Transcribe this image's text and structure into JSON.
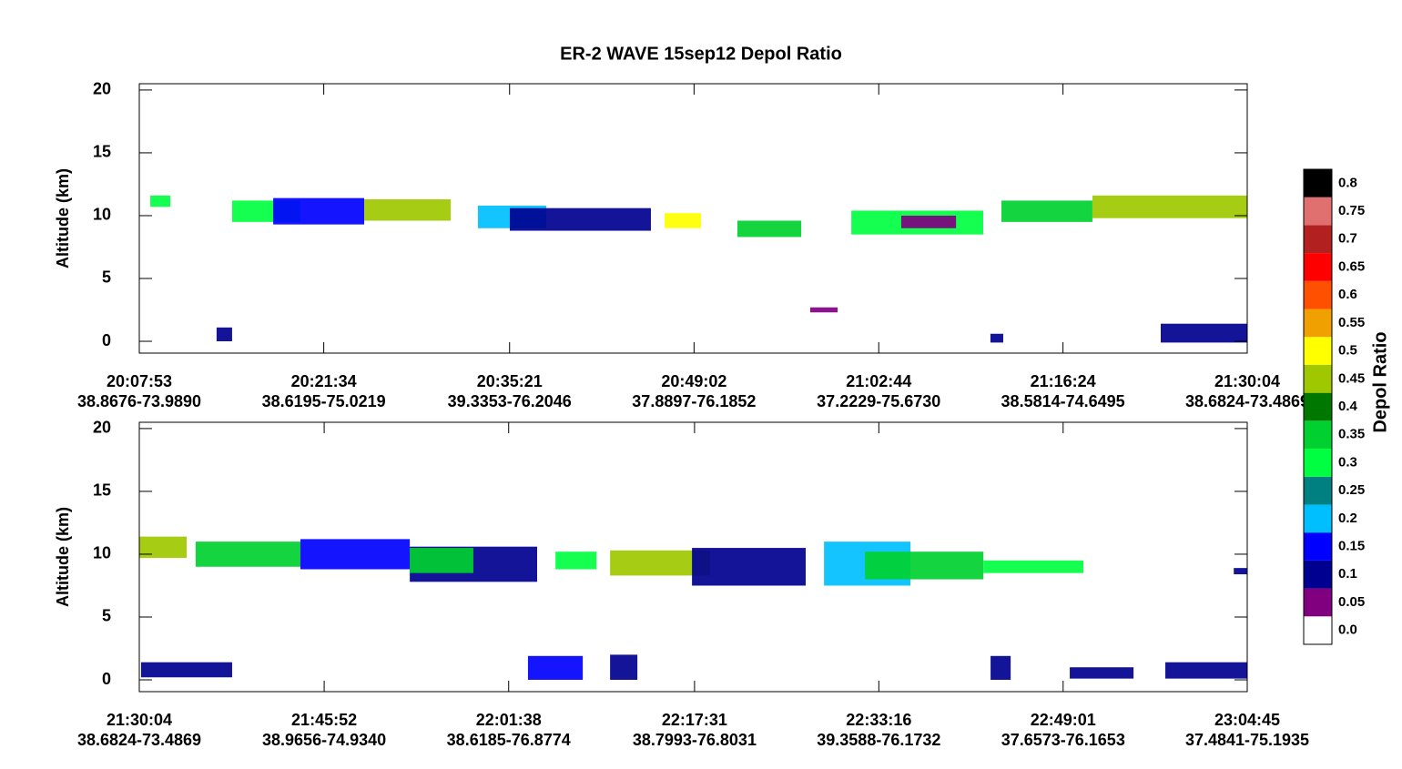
{
  "chart_data": [
    {
      "type": "curtain",
      "title": "ER-2 WAVE 15sep12 Depol Ratio",
      "y_label": "Altitude (km)",
      "ylim": [
        -0.94,
        20.5
      ],
      "yticks": [
        0,
        5,
        10,
        15,
        20
      ],
      "xlim": [
        "20:07:53",
        "21:30:04"
      ],
      "xticks": [
        "20:07:53",
        "20:21:34",
        "20:35:21",
        "20:49:02",
        "21:02:44",
        "21:16:24",
        "21:30:04"
      ],
      "xtick_coords": [
        "38.8676-73.9890",
        "38.6195-75.0219",
        "39.3353-76.2046",
        "37.8897-76.1852",
        "37.2229-75.6730",
        "38.5814-74.6495",
        "38.6824-73.4869"
      ],
      "patches": [
        {
          "start": "20:08:42",
          "end": "20:10:11",
          "bottom": 10.7,
          "top": 11.6,
          "value": 0.3
        },
        {
          "start": "20:14:46",
          "end": "20:19:50",
          "bottom": 9.5,
          "top": 11.2,
          "value": 0.3
        },
        {
          "start": "20:17:49",
          "end": "20:24:34",
          "bottom": 9.3,
          "top": 11.4,
          "value": 0.15
        },
        {
          "start": "20:24:34",
          "end": "20:30:59",
          "bottom": 9.6,
          "top": 11.3,
          "value": 0.45
        },
        {
          "start": "20:33:00",
          "end": "20:38:04",
          "bottom": 9.0,
          "top": 10.8,
          "value": 0.2
        },
        {
          "start": "20:35:22",
          "end": "20:45:50",
          "bottom": 8.8,
          "top": 10.6,
          "value": 0.1
        },
        {
          "start": "20:46:51",
          "end": "20:49:33",
          "bottom": 9.0,
          "top": 10.2,
          "value": 0.5
        },
        {
          "start": "20:52:15",
          "end": "20:56:59",
          "bottom": 8.3,
          "top": 9.6,
          "value": 0.35
        },
        {
          "start": "21:00:42",
          "end": "21:10:29",
          "bottom": 8.5,
          "top": 10.4,
          "value": 0.3
        },
        {
          "start": "21:04:24",
          "end": "21:08:28",
          "bottom": 9.0,
          "top": 10.0,
          "value": 0.05
        },
        {
          "start": "21:11:50",
          "end": "21:18:35",
          "bottom": 9.5,
          "top": 11.2,
          "value": 0.35
        },
        {
          "start": "21:18:35",
          "end": "21:30:04",
          "bottom": 9.8,
          "top": 11.6,
          "value": 0.45
        },
        {
          "start": "21:23:39",
          "end": "21:30:04",
          "bottom": -0.1,
          "top": 1.4,
          "value": 0.1
        },
        {
          "start": "20:13:37",
          "end": "20:14:46",
          "bottom": 0,
          "top": 1.1,
          "value": 0.1
        },
        {
          "start": "21:11:01",
          "end": "21:11:58",
          "bottom": -0.1,
          "top": 0.6,
          "value": 0.1
        },
        {
          "start": "20:57:39",
          "end": "20:59:41",
          "bottom": 2.3,
          "top": 2.7,
          "value": 0.05
        }
      ]
    },
    {
      "type": "curtain",
      "y_label": "Altitude (km)",
      "ylim": [
        -0.94,
        20.5
      ],
      "yticks": [
        0,
        5,
        10,
        15,
        20
      ],
      "xlim": [
        "21:30:04",
        "23:04:45"
      ],
      "xticks": [
        "21:30:04",
        "21:45:52",
        "22:01:38",
        "22:17:31",
        "22:33:16",
        "22:49:01",
        "23:04:45"
      ],
      "xtick_coords": [
        "38.6824-73.4869",
        "38.9656-74.9340",
        "38.6185-76.8774",
        "38.7993-76.8031",
        "39.3588-76.1732",
        "37.6573-76.1653",
        "37.4841-75.1935"
      ],
      "patches": [
        {
          "start": "21:30:04",
          "end": "21:34:07",
          "bottom": 9.7,
          "top": 11.4,
          "value": 0.45
        },
        {
          "start": "21:34:53",
          "end": "21:43:50",
          "bottom": 9.0,
          "top": 11.0,
          "value": 0.35
        },
        {
          "start": "21:43:50",
          "end": "21:53:11",
          "bottom": 8.8,
          "top": 11.2,
          "value": 0.15
        },
        {
          "start": "21:53:11",
          "end": "22:04:04",
          "bottom": 7.8,
          "top": 10.6,
          "value": 0.1
        },
        {
          "start": "21:53:11",
          "end": "21:58:37",
          "bottom": 8.5,
          "top": 10.5,
          "value": 0.35
        },
        {
          "start": "22:05:38",
          "end": "22:09:08",
          "bottom": 8.8,
          "top": 10.2,
          "value": 0.3
        },
        {
          "start": "22:10:18",
          "end": "22:18:51",
          "bottom": 8.3,
          "top": 10.3,
          "value": 0.45
        },
        {
          "start": "22:17:18",
          "end": "22:27:01",
          "bottom": 7.5,
          "top": 10.5,
          "value": 0.1
        },
        {
          "start": "22:28:35",
          "end": "22:35:58",
          "bottom": 7.5,
          "top": 11.0,
          "value": 0.2
        },
        {
          "start": "22:32:05",
          "end": "22:42:12",
          "bottom": 8.0,
          "top": 10.2,
          "value": 0.35
        },
        {
          "start": "22:42:12",
          "end": "22:50:45",
          "bottom": 8.5,
          "top": 9.5,
          "value": 0.3
        },
        {
          "start": "21:30:13",
          "end": "21:38:00",
          "bottom": 0.2,
          "top": 1.4,
          "value": 0.1
        },
        {
          "start": "22:03:17",
          "end": "22:07:58",
          "bottom": 0,
          "top": 1.9,
          "value": 0.15
        },
        {
          "start": "22:10:18",
          "end": "22:12:38",
          "bottom": 0,
          "top": 2.0,
          "value": 0.1
        },
        {
          "start": "22:42:49",
          "end": "22:44:32",
          "bottom": 0,
          "top": 1.9,
          "value": 0.1
        },
        {
          "start": "22:49:35",
          "end": "22:55:02",
          "bottom": 0.1,
          "top": 1.0,
          "value": 0.1
        },
        {
          "start": "22:57:45",
          "end": "23:04:45",
          "bottom": 0.1,
          "top": 1.4,
          "value": 0.1
        },
        {
          "start": "23:03:36",
          "end": "23:04:45",
          "bottom": 8.4,
          "top": 8.9,
          "value": 0.1
        }
      ]
    },
    {
      "type": "colorbar",
      "label": "Depol Ratio",
      "levels": [
        {
          "value": 0,
          "label": "0.0",
          "color": "#ffffff"
        },
        {
          "value": 0.05,
          "color": "#800080"
        },
        {
          "value": 0.1,
          "color": "#000090"
        },
        {
          "value": 0.15,
          "color": "#0000ff"
        },
        {
          "value": 0.2,
          "color": "#00bfff"
        },
        {
          "value": 0.25,
          "color": "#008080"
        },
        {
          "value": 0.3,
          "color": "#00ff40"
        },
        {
          "value": 0.35,
          "color": "#00d030"
        },
        {
          "value": 0.4,
          "color": "#007800"
        },
        {
          "value": 0.45,
          "color": "#a0c800"
        },
        {
          "value": 0.5,
          "color": "#ffff00"
        },
        {
          "value": 0.55,
          "color": "#f0a000"
        },
        {
          "value": 0.6,
          "color": "#ff5000"
        },
        {
          "value": 0.65,
          "color": "#ff0000"
        },
        {
          "value": 0.7,
          "color": "#b22020"
        },
        {
          "value": 0.75,
          "color": "#e07070"
        },
        {
          "value": 0.8,
          "color": "#000000"
        }
      ]
    }
  ]
}
